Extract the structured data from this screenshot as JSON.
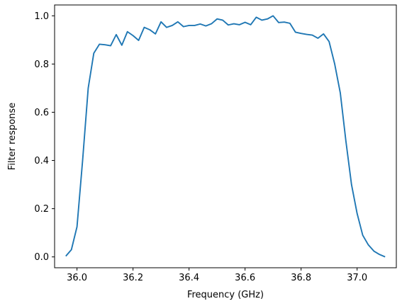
{
  "chart_data": {
    "type": "line",
    "title": "",
    "xlabel": "Frequency (GHz)",
    "ylabel": "Filter response",
    "xlim": [
      35.92,
      37.14
    ],
    "ylim": [
      -0.045,
      1.045
    ],
    "xticks": [
      36.0,
      36.2,
      36.4,
      36.6,
      36.8,
      37.0
    ],
    "xtick_labels": [
      "36.0",
      "36.2",
      "36.4",
      "36.6",
      "36.8",
      "37.0"
    ],
    "yticks": [
      0.0,
      0.2,
      0.4,
      0.6,
      0.8,
      1.0
    ],
    "ytick_labels": [
      "0.0",
      "0.2",
      "0.4",
      "0.6",
      "0.8",
      "1.0"
    ],
    "grid": false,
    "line_color": "#1f77b4",
    "series": [
      {
        "x": [
          35.96,
          35.98,
          36.0,
          36.02,
          36.04,
          36.06,
          36.08,
          36.1,
          36.12,
          36.14,
          36.16,
          36.18,
          36.2,
          36.22,
          36.24,
          36.26,
          36.28,
          36.3,
          36.32,
          36.34,
          36.36,
          36.38,
          36.4,
          36.42,
          36.44,
          36.46,
          36.48,
          36.5,
          36.52,
          36.54,
          36.56,
          36.58,
          36.6,
          36.62,
          36.64,
          36.66,
          36.68,
          36.7,
          36.72,
          36.74,
          36.76,
          36.78,
          36.8,
          36.82,
          36.84,
          36.86,
          36.88,
          36.9,
          36.92,
          36.94,
          36.96,
          36.98,
          37.0,
          37.02,
          37.04,
          37.06,
          37.08,
          37.1
        ],
        "y": [
          0.003,
          0.03,
          0.125,
          0.4,
          0.7,
          0.845,
          0.882,
          0.88,
          0.876,
          0.922,
          0.878,
          0.934,
          0.918,
          0.898,
          0.952,
          0.942,
          0.925,
          0.975,
          0.952,
          0.96,
          0.975,
          0.955,
          0.96,
          0.96,
          0.966,
          0.958,
          0.967,
          0.987,
          0.982,
          0.962,
          0.967,
          0.963,
          0.973,
          0.963,
          0.994,
          0.982,
          0.987,
          1.0,
          0.972,
          0.974,
          0.969,
          0.932,
          0.927,
          0.923,
          0.92,
          0.907,
          0.925,
          0.893,
          0.8,
          0.68,
          0.48,
          0.3,
          0.18,
          0.09,
          0.05,
          0.024,
          0.01,
          0.0
        ]
      }
    ]
  }
}
